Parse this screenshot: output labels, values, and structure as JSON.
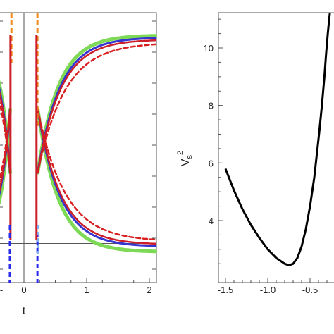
{
  "chart_data": [
    {
      "type": "line",
      "xlabel": "t",
      "ylabel": "",
      "xlim": [
        -0.37,
        2.1
      ],
      "x_ticks": [
        "0",
        "1",
        "2"
      ],
      "x_tick_values": [
        0,
        1,
        2
      ],
      "partial_tick_label": "-",
      "grid": false,
      "legend": "none",
      "colors": {
        "green": "#7ed957",
        "blue": "#3535d0",
        "red": "#cc1f2a",
        "dashed_red": "#d92020",
        "dashed_blue": "#2a2aee",
        "dashed_orange": "#f08a1c",
        "dashed_lightblue": "#7fb3f0"
      },
      "series": [
        {
          "style": "green",
          "upper_asymptote": 1.0,
          "lower_asymptote": -1.05,
          "rate": 3.0
        },
        {
          "style": "blue",
          "upper_asymptote": 0.98,
          "lower_asymptote": -1.0,
          "rate": 2.8
        },
        {
          "style": "red",
          "upper_asymptote": 0.96,
          "lower_asymptote": -0.98,
          "rate": 2.7
        },
        {
          "style": "dashed",
          "upper_asymptote": 0.93,
          "lower_asymptote": -0.95,
          "rate": 2.3
        }
      ],
      "reference_lines": {
        "vertical_x": 0,
        "horizontal_y": -0.97
      }
    },
    {
      "type": "line",
      "xlabel": "",
      "ylabel": "Vs²",
      "ylabel_main": "V",
      "ylabel_sub": "s",
      "ylabel_sup": "2",
      "xlim": [
        -1.6,
        -0.15
      ],
      "ylim": [
        1.8,
        11.2
      ],
      "x_ticks": [
        "-1.5",
        "-1.0",
        "-0.5"
      ],
      "x_tick_values": [
        -1.5,
        -1.0,
        -0.5
      ],
      "y_ticks": [
        "4",
        "6",
        "8",
        "10"
      ],
      "y_tick_values": [
        4,
        6,
        8,
        10
      ],
      "grid": false,
      "legend": "none",
      "line_color": "#000000",
      "series": [
        {
          "x": [
            -1.5,
            -1.4,
            -1.3,
            -1.2,
            -1.1,
            -1.0,
            -0.9,
            -0.8,
            -0.75,
            -0.7,
            -0.65,
            -0.6,
            -0.55,
            -0.5,
            -0.45,
            -0.42,
            -0.39,
            -0.36,
            -0.33,
            -0.31,
            -0.29,
            -0.27,
            -0.25
          ],
          "y": [
            5.8,
            5.05,
            4.4,
            3.85,
            3.4,
            3.0,
            2.7,
            2.5,
            2.45,
            2.5,
            2.7,
            3.1,
            3.7,
            4.5,
            5.5,
            6.3,
            7.1,
            8.0,
            9.0,
            9.8,
            10.5,
            11.1,
            11.6
          ]
        }
      ]
    }
  ]
}
